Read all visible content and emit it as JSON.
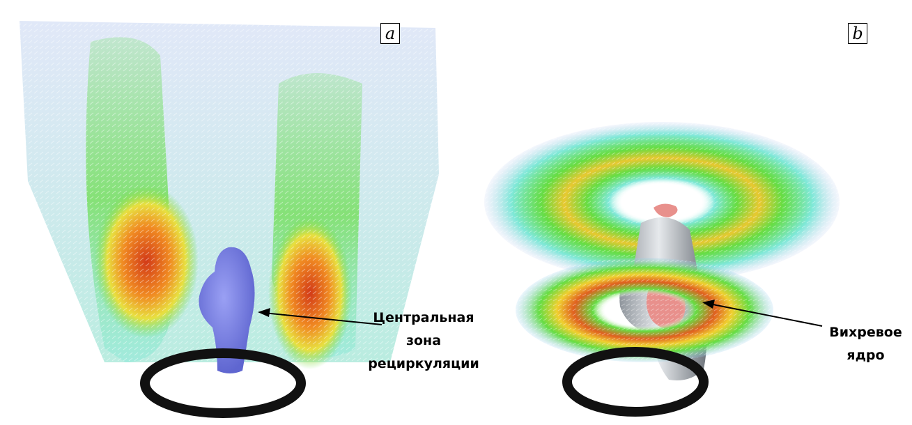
{
  "panels": [
    {
      "id": "a",
      "letter": "a",
      "annotation": [
        "Центральная",
        "зона",
        "рециркуляции"
      ]
    },
    {
      "id": "b",
      "letter": "b",
      "annotation": [
        "Вихревое",
        "ядро"
      ]
    }
  ],
  "colors": {
    "low_velocity": "#b8c8f0",
    "mid_low": "#7fe8d8",
    "mid": "#66dd44",
    "mid_high": "#f0e040",
    "high": "#f08020",
    "peak": "#d93a1a",
    "recirculation_zone": "#7d84e8",
    "vortex_core": "#c9cdd3",
    "vortex_core_inner": "#e8908c",
    "ring": "#111111"
  }
}
